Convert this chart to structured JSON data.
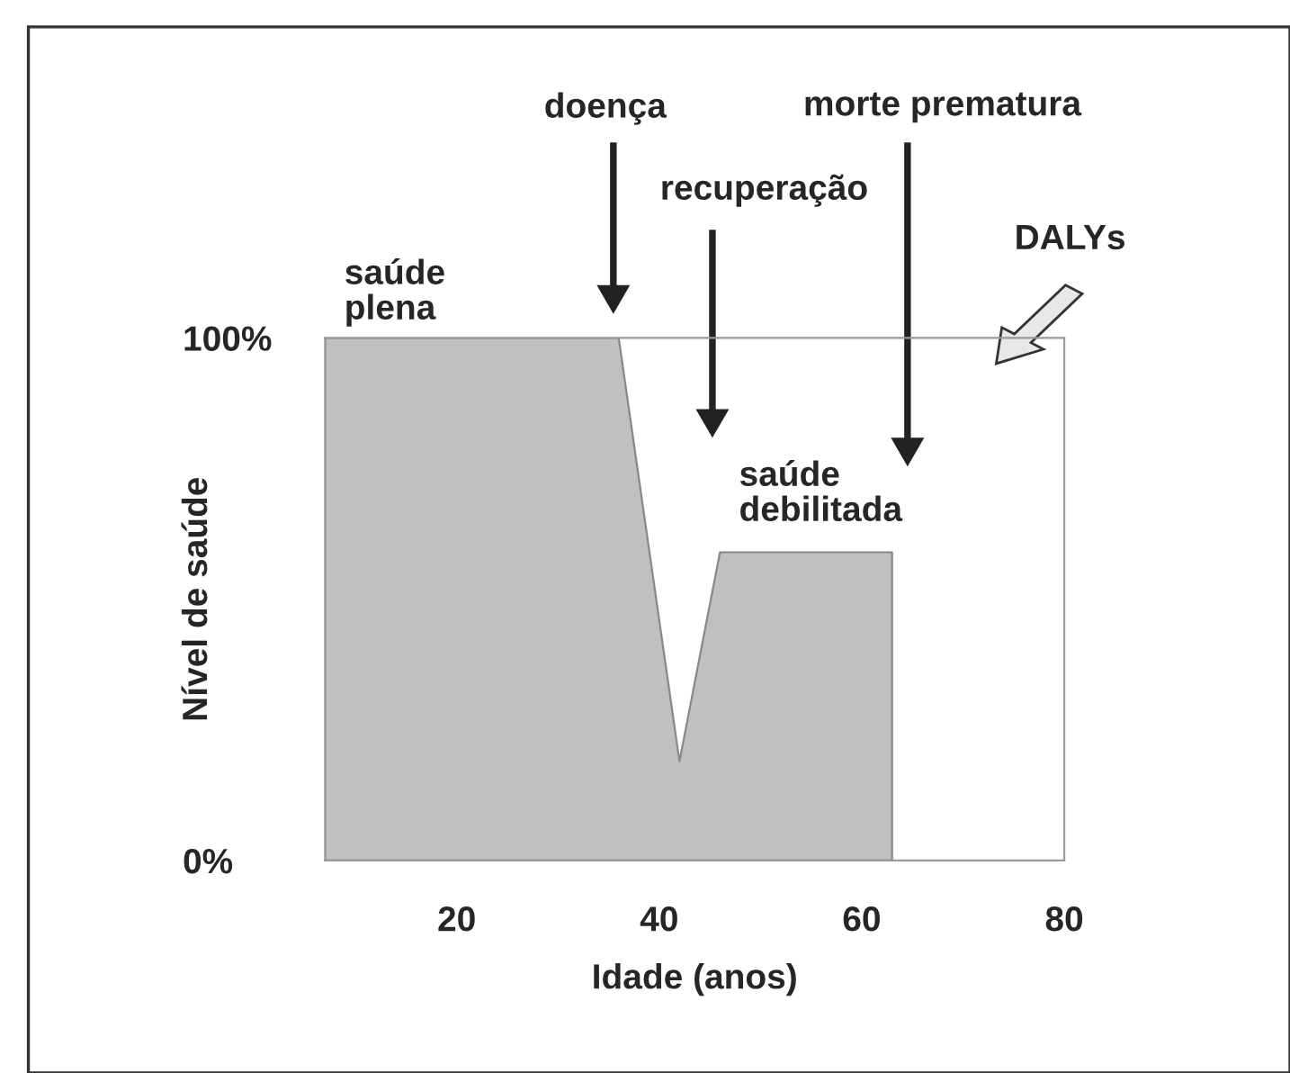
{
  "chart_data": {
    "type": "area",
    "xlabel": "Idade (anos)",
    "ylabel": "Nível de saúde",
    "series": [
      {
        "color": "#c0c0c0",
        "x": [
          7,
          36,
          42,
          46,
          63,
          63
        ],
        "values": [
          100,
          100,
          19,
          59,
          59,
          0
        ]
      }
    ],
    "xlim": [
      7,
      80
    ],
    "ylim": [
      0,
      100
    ],
    "xticks": [
      20,
      40,
      60,
      80
    ],
    "yticks": [
      {
        "value": 0,
        "label": "0%"
      },
      {
        "value": 100,
        "label": "100%"
      }
    ],
    "grid": false,
    "legend": false,
    "annotations": [
      "doença",
      "recuperação",
      "morte prematura",
      "DALYs",
      "saúde\nplena",
      "saúde\ndebilitada"
    ]
  }
}
